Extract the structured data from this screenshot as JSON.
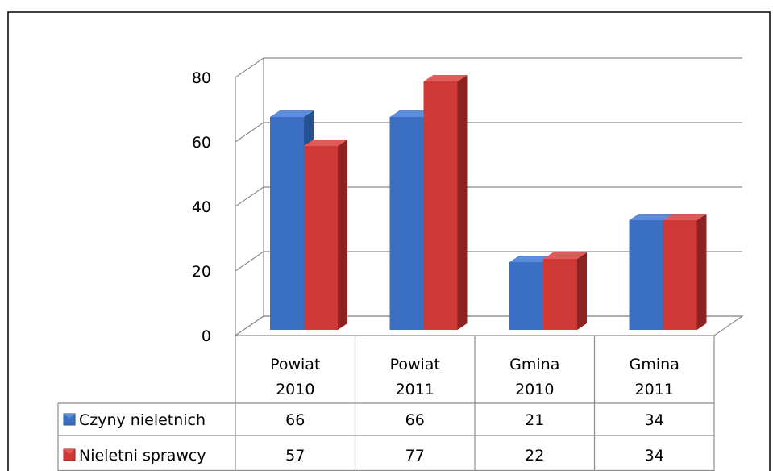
{
  "colors": {
    "series_1": "#3a6fc4",
    "series_1_dark": "#27508f",
    "series_1_top": "#5b8ddb",
    "series_2": "#cf3a38",
    "series_2_dark": "#8e2220",
    "series_2_top": "#e05a57",
    "grid": "#8c8c8c",
    "border": "#8c8c8c",
    "frame": "#000000"
  },
  "chart_data": {
    "type": "bar",
    "title": "",
    "xlabel": "",
    "ylabel": "",
    "ylim": [
      0,
      80
    ],
    "yticks": [
      "0",
      "20",
      "40",
      "60",
      "80"
    ],
    "categories": [
      [
        "Powiat",
        "2010"
      ],
      [
        "Powiat",
        "2011"
      ],
      [
        "Gmina",
        "2010"
      ],
      [
        "Gmina",
        "2011"
      ]
    ],
    "series": [
      {
        "name": "Czyny nieletnich",
        "values": [
          66,
          66,
          21,
          34
        ]
      },
      {
        "name": "Nieletni sprawcy",
        "values": [
          57,
          77,
          22,
          34
        ]
      }
    ],
    "grid": true,
    "legend": "data-table",
    "style": "3d-clustered-column"
  }
}
